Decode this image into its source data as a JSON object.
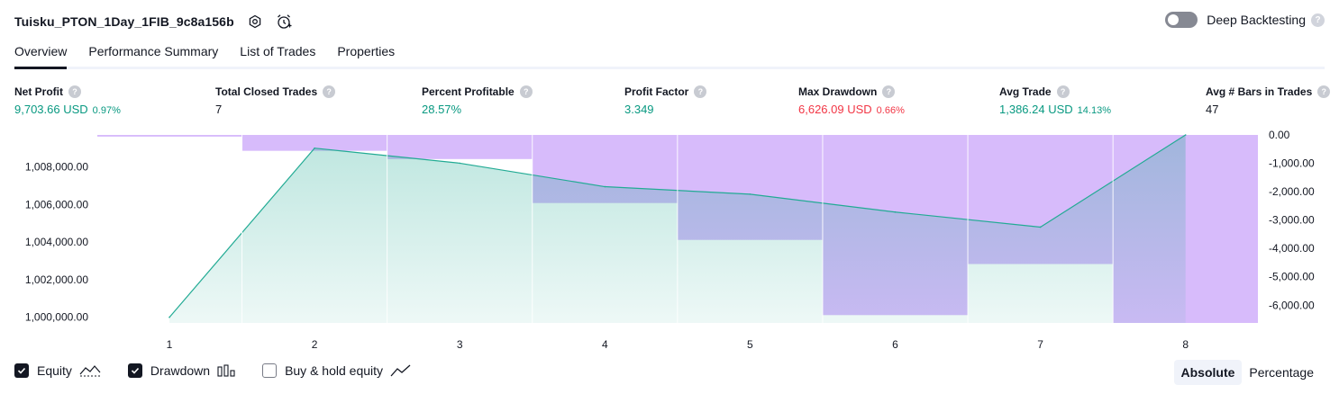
{
  "header": {
    "strategy_name": "Tuisku_PTON_1Day_1FIB_9c8a156b",
    "deep_backtesting_label": "Deep Backtesting",
    "help_glyph": "?"
  },
  "tabs": [
    {
      "label": "Overview",
      "active": true
    },
    {
      "label": "Performance Summary",
      "active": false
    },
    {
      "label": "List of Trades",
      "active": false
    },
    {
      "label": "Properties",
      "active": false
    }
  ],
  "metrics": [
    {
      "label": "Net Profit",
      "value": "9,703.66 USD",
      "pct": "0.97%",
      "tone": "green"
    },
    {
      "label": "Total Closed Trades",
      "value": "7",
      "pct": "",
      "tone": "neutral"
    },
    {
      "label": "Percent Profitable",
      "value": "28.57%",
      "pct": "",
      "tone": "green"
    },
    {
      "label": "Profit Factor",
      "value": "3.349",
      "pct": "",
      "tone": "green"
    },
    {
      "label": "Max Drawdown",
      "value": "6,626.09 USD",
      "pct": "0.66%",
      "tone": "red"
    },
    {
      "label": "Avg Trade",
      "value": "1,386.24 USD",
      "pct": "14.13%",
      "tone": "green"
    },
    {
      "label": "Avg # Bars in Trades",
      "value": "47",
      "pct": "",
      "tone": "neutral"
    }
  ],
  "chart_data": {
    "type": "area",
    "x": [
      1,
      2,
      3,
      4,
      5,
      6,
      7,
      8
    ],
    "x_tick_labels": [
      "1",
      "2",
      "3",
      "4",
      "5",
      "6",
      "7",
      "8"
    ],
    "series": [
      {
        "name": "Equity",
        "axis": "left",
        "kind": "area-line",
        "values": [
          1000000,
          1009000,
          1008200,
          1006950,
          1006550,
          1005600,
          1004800,
          1009703.66
        ]
      },
      {
        "name": "Drawdown",
        "axis": "right",
        "kind": "bar",
        "values": [
          -60,
          -560,
          -850,
          -2400,
          -3700,
          -6350,
          -4550,
          -6626.09
        ]
      }
    ],
    "left_axis": {
      "min": 999700,
      "max": 1009703.66,
      "tick_values": [
        1000000,
        1002000,
        1004000,
        1006000,
        1008000
      ],
      "tick_labels": [
        "1,000,000.00",
        "1,002,000.00",
        "1,004,000.00",
        "1,006,000.00",
        "1,008,000.00"
      ]
    },
    "right_axis": {
      "min": -6626.09,
      "max": 0,
      "tick_values": [
        0,
        -1000,
        -2000,
        -3000,
        -4000,
        -5000,
        -6000
      ],
      "tick_labels": [
        "0.00",
        "-1,000.00",
        "-2,000.00",
        "-3,000.00",
        "-4,000.00",
        "-5,000.00",
        "-6,000.00"
      ]
    },
    "colors": {
      "equity_line": "#22ab94",
      "equity_fill": "#22ab94",
      "drawdown_fill": "#d7bbfb"
    }
  },
  "legend": {
    "equity_label": "Equity",
    "drawdown_label": "Drawdown",
    "buyhold_label": "Buy & hold equity",
    "equity_checked": true,
    "drawdown_checked": true,
    "buyhold_checked": false
  },
  "scale": {
    "absolute_label": "Absolute",
    "percentage_label": "Percentage",
    "selected": "Absolute"
  }
}
